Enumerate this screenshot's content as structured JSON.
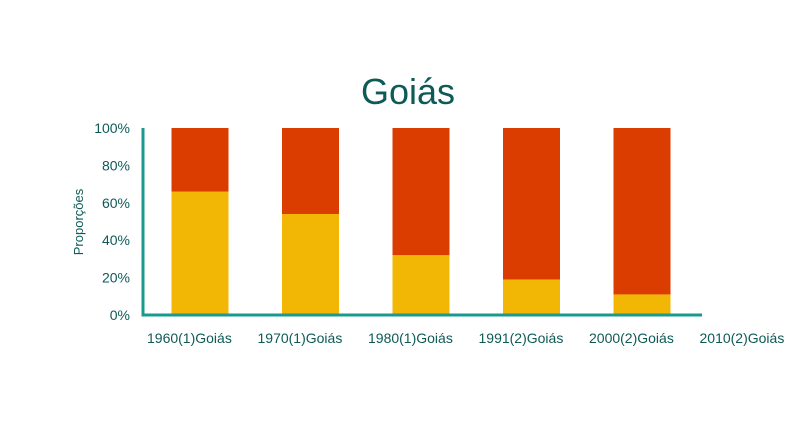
{
  "chart_data": {
    "type": "bar",
    "stacked": true,
    "title": "Goiás",
    "ylabel": "Proporções",
    "xlabel": "",
    "ylim": [
      0,
      100
    ],
    "yticks": [
      "0%",
      "20%",
      "40%",
      "60%",
      "80%",
      "100%"
    ],
    "categories": [
      "1960(1)Goiás",
      "1970(1)Goiás",
      "1980(1)Goiás",
      "1991(2)Goiás",
      "2000(2)Goiás",
      "2010(2)Goiás"
    ],
    "series": [
      {
        "color": "#f2b705",
        "values": [
          66,
          54,
          32,
          19,
          11,
          0
        ]
      },
      {
        "color": "#db3d00",
        "values": [
          34,
          46,
          68,
          81,
          89,
          0
        ]
      }
    ],
    "visible_bars": 5,
    "axis_color": "#1a9a8f",
    "grid": false,
    "legend": "none"
  }
}
